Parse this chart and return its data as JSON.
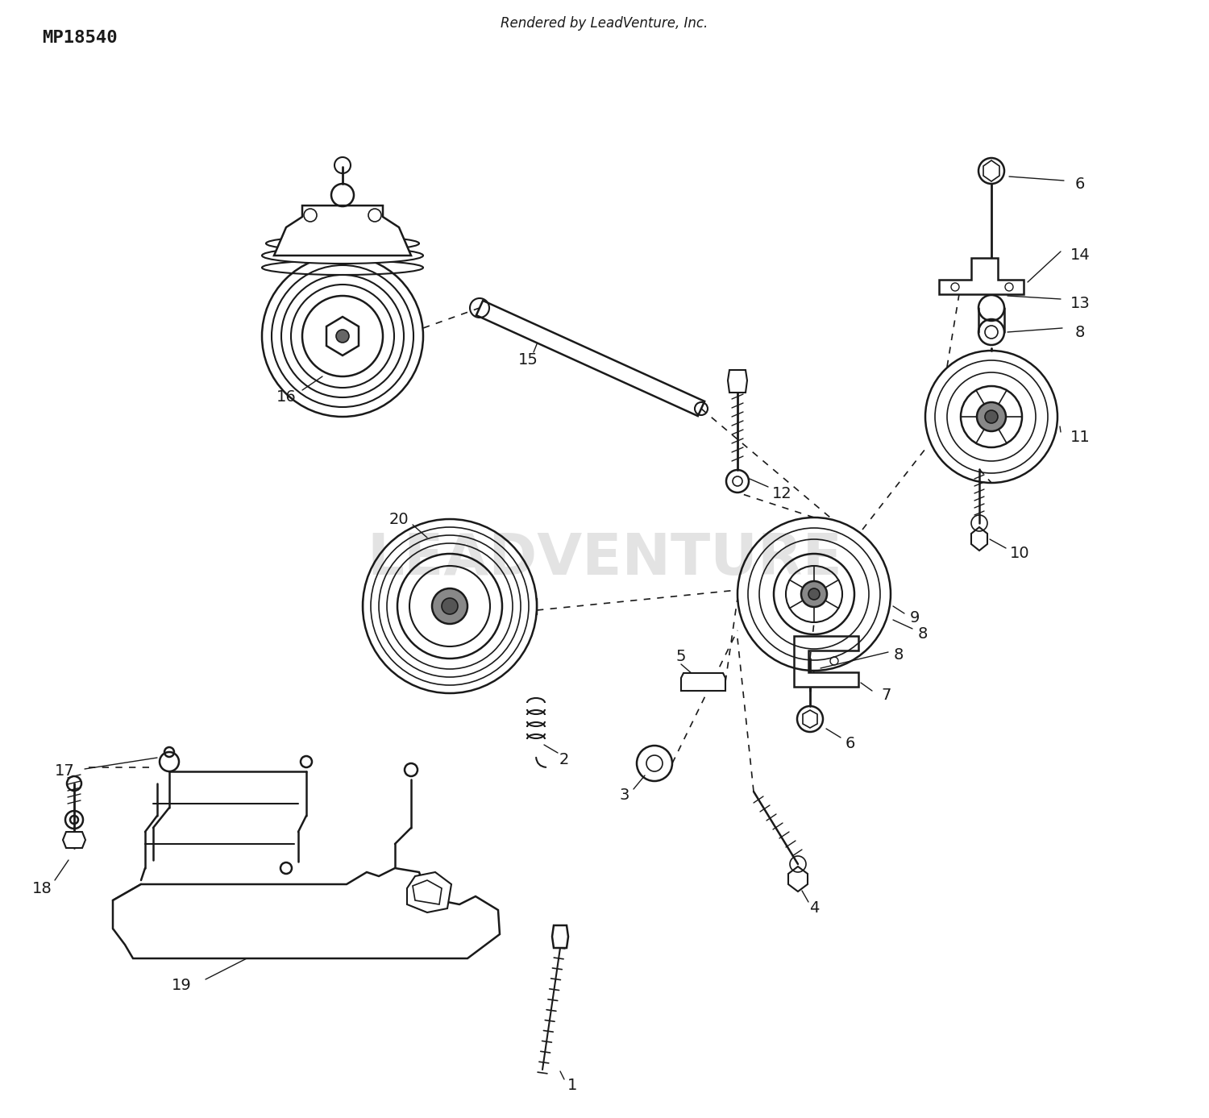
{
  "bottom_left_text": "MP18540",
  "bottom_center_text": "Rendered by LeadVenture, Inc.",
  "watermark": "LEADVENTURE",
  "bg_color": "#ffffff",
  "line_color": "#1a1a1a"
}
